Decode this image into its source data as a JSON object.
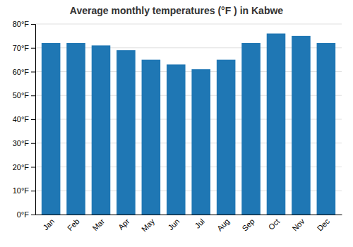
{
  "chart_data": {
    "type": "bar",
    "title": "Average monthly temperatures (°F ) in Kabwe",
    "categories": [
      "Jan",
      "Feb",
      "Mar",
      "Apr",
      "May",
      "Jun",
      "Jul",
      "Aug",
      "Sep",
      "Oct",
      "Nov",
      "Dec"
    ],
    "values": [
      72,
      72,
      71,
      69,
      65,
      63,
      61,
      65,
      72,
      76,
      75,
      72
    ],
    "ylim": [
      0,
      80
    ],
    "yticks": [
      {
        "value": 0,
        "label": "0°F"
      },
      {
        "value": 10,
        "label": "10°F"
      },
      {
        "value": 20,
        "label": "20°F"
      },
      {
        "value": 30,
        "label": "30°F"
      },
      {
        "value": 40,
        "label": "40°F"
      },
      {
        "value": 50,
        "label": "50°F"
      },
      {
        "value": 60,
        "label": "60°F"
      },
      {
        "value": 70,
        "label": "70°F"
      },
      {
        "value": 80,
        "label": "80°F"
      }
    ],
    "grid": true
  }
}
